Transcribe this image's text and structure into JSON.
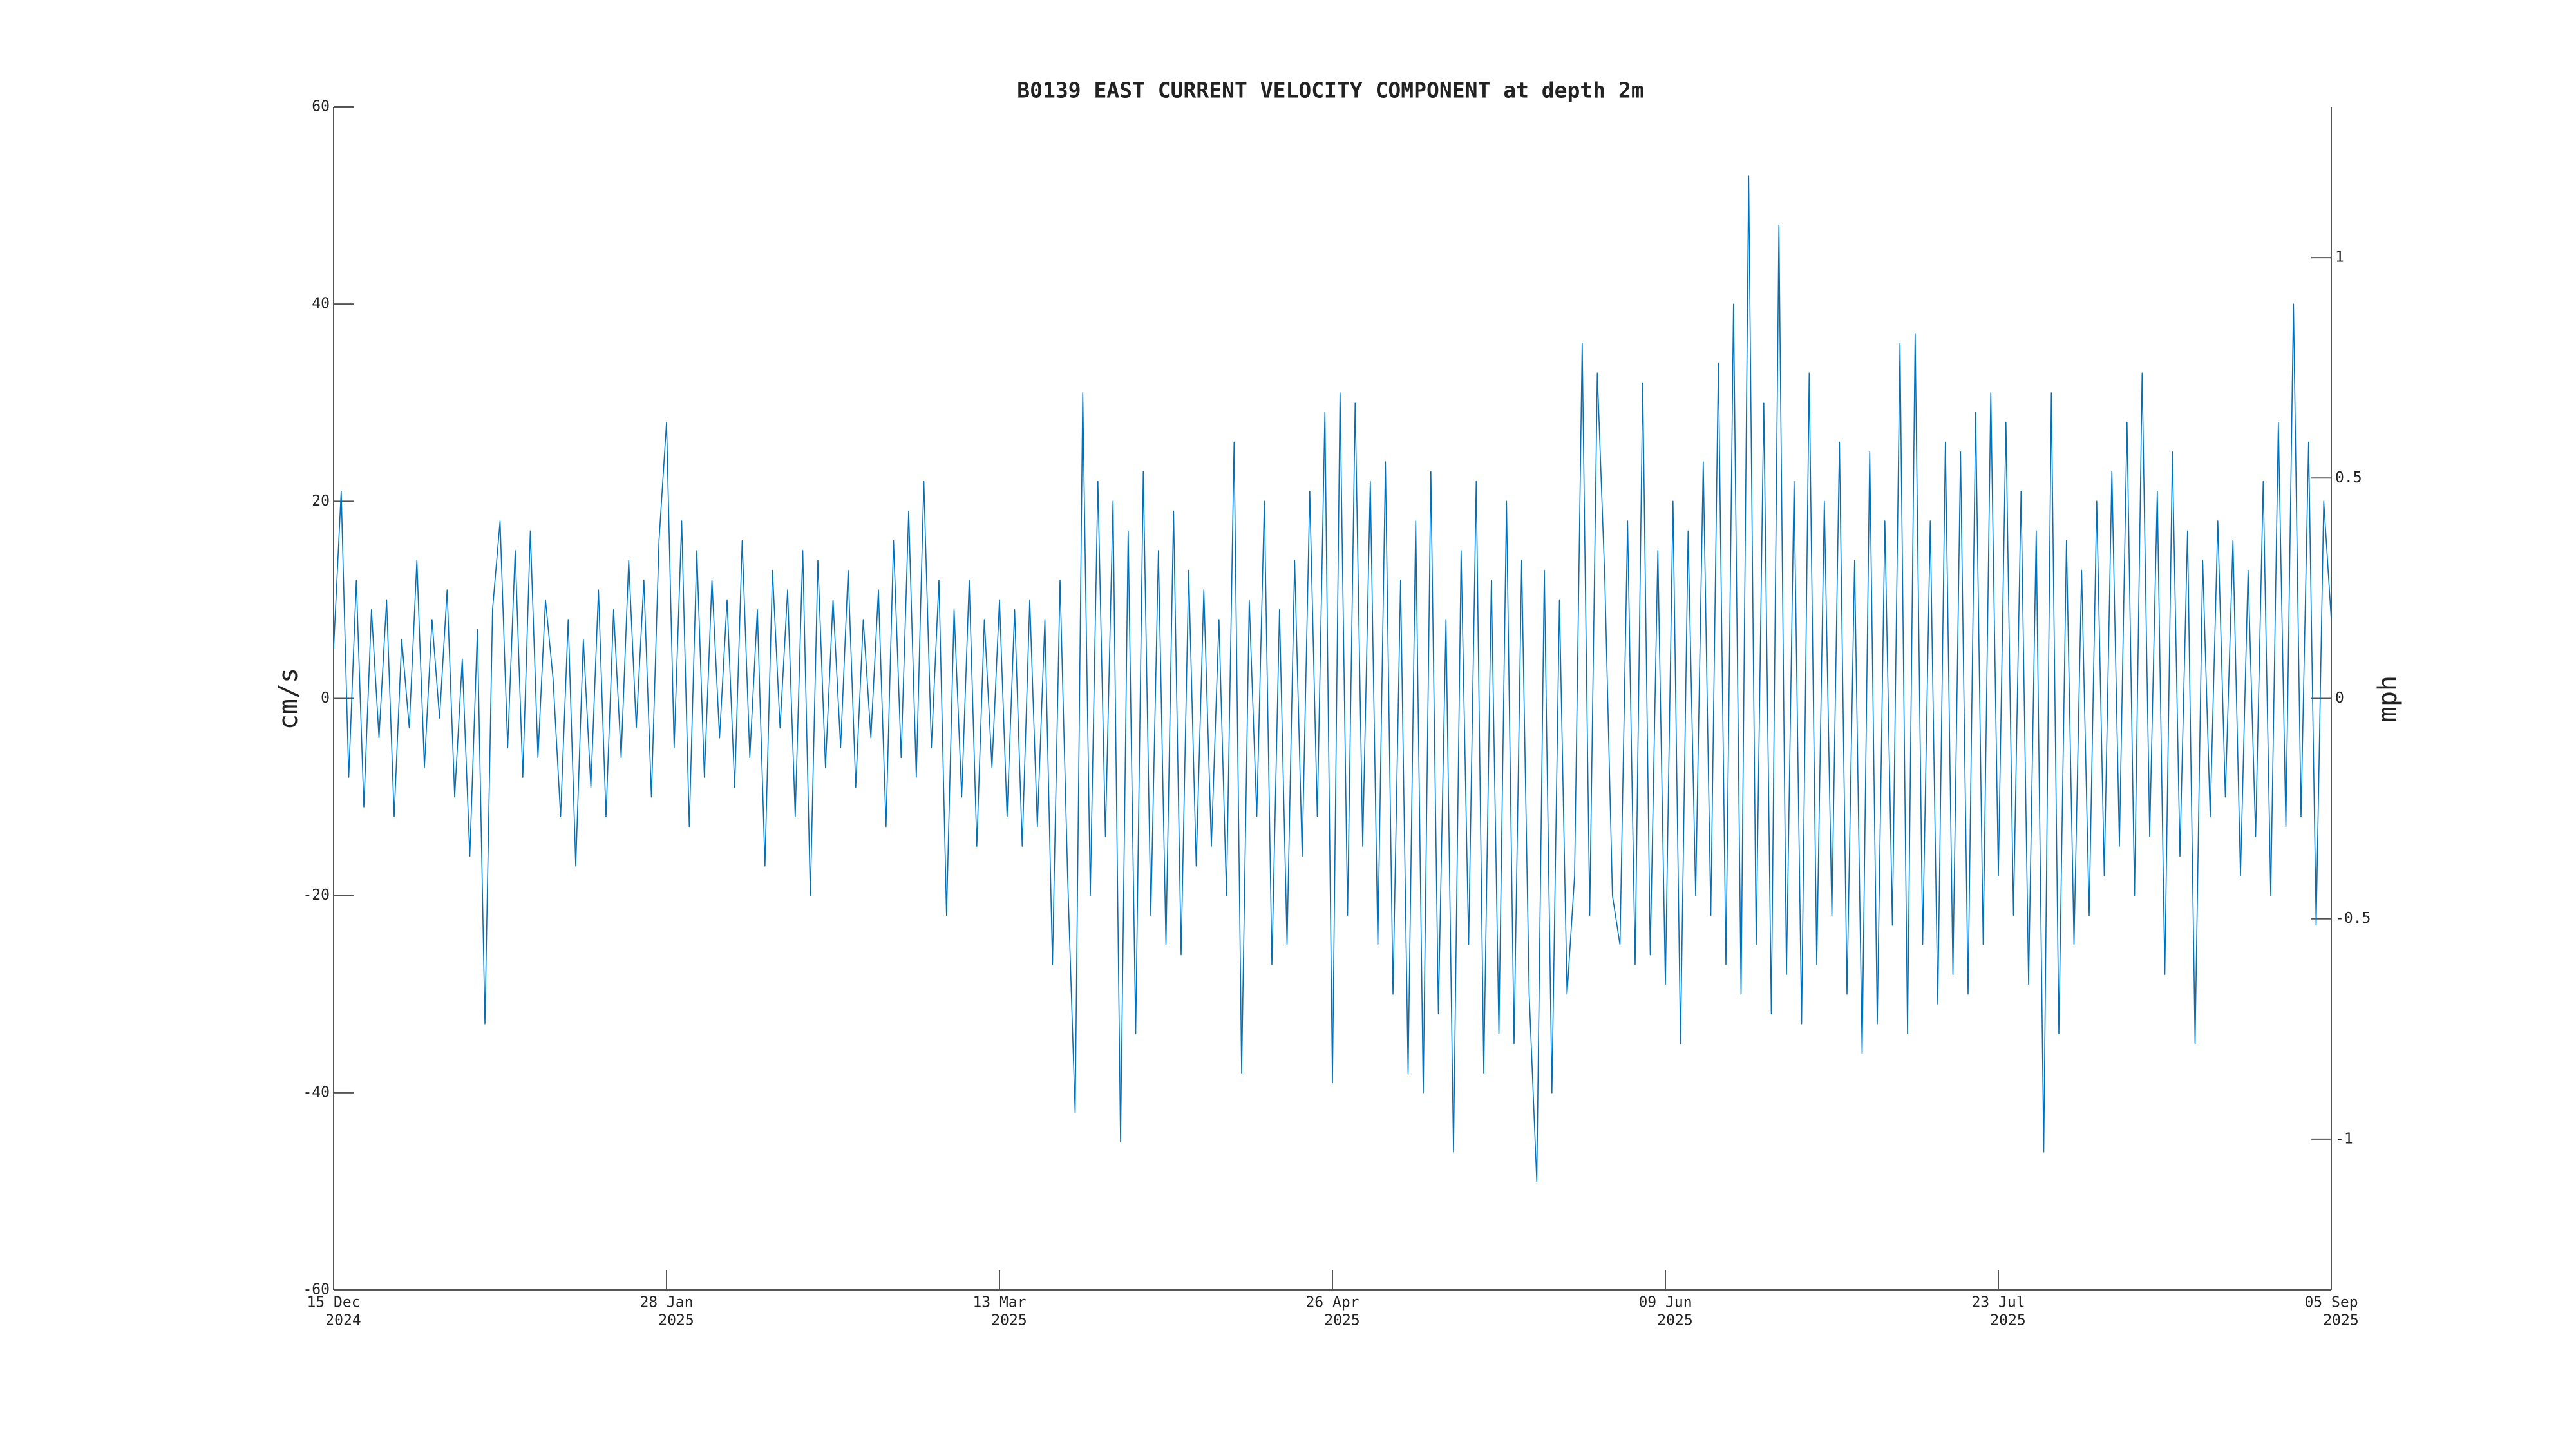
{
  "chart_data": {
    "type": "line",
    "title": "B0139 EAST CURRENT VELOCITY COMPONENT at depth 2m",
    "ylabel": "cm/s",
    "y2label": "mph",
    "xlim": [
      "2024-12-15",
      "2025-09-05"
    ],
    "xticks": [
      {
        "value": "2024-12-15",
        "label": "15 Dec",
        "year": "2024"
      },
      {
        "value": "2025-01-28",
        "label": "28 Jan",
        "year": "2025"
      },
      {
        "value": "2025-03-13",
        "label": "13 Mar",
        "year": "2025"
      },
      {
        "value": "2025-04-26",
        "label": "26 Apr",
        "year": "2025"
      },
      {
        "value": "2025-06-09",
        "label": "09 Jun",
        "year": "2025"
      },
      {
        "value": "2025-07-23",
        "label": "23 Jul",
        "year": "2025"
      },
      {
        "value": "2025-09-05",
        "label": "05 Sep",
        "year": "2025"
      }
    ],
    "ylim": [
      -60,
      60
    ],
    "yticks": [
      -60,
      -40,
      -20,
      0,
      20,
      40,
      60
    ],
    "y2lim": [
      -1.342,
      1.342
    ],
    "y2ticks": [
      -1,
      -0.5,
      0,
      0.5,
      1
    ],
    "grid": false,
    "x": [
      "2024-12-15",
      "2024-12-16",
      "2024-12-17",
      "2024-12-18",
      "2024-12-19",
      "2024-12-20",
      "2024-12-21",
      "2024-12-22",
      "2024-12-23",
      "2024-12-24",
      "2024-12-25",
      "2024-12-26",
      "2024-12-27",
      "2024-12-28",
      "2024-12-29",
      "2024-12-30",
      "2024-12-31",
      "2025-01-01",
      "2025-01-02",
      "2025-01-03",
      "2025-01-04",
      "2025-01-05",
      "2025-01-06",
      "2025-01-07",
      "2025-01-08",
      "2025-01-09",
      "2025-01-10",
      "2025-01-11",
      "2025-01-12",
      "2025-01-13",
      "2025-01-14",
      "2025-01-15",
      "2025-01-16",
      "2025-01-17",
      "2025-01-18",
      "2025-01-19",
      "2025-01-20",
      "2025-01-21",
      "2025-01-22",
      "2025-01-23",
      "2025-01-24",
      "2025-01-25",
      "2025-01-26",
      "2025-01-27",
      "2025-01-28",
      "2025-01-29",
      "2025-01-30",
      "2025-01-31",
      "2025-02-01",
      "2025-02-02",
      "2025-02-03",
      "2025-02-04",
      "2025-02-05",
      "2025-02-06",
      "2025-02-07",
      "2025-02-08",
      "2025-02-09",
      "2025-02-10",
      "2025-02-11",
      "2025-02-12",
      "2025-02-13",
      "2025-02-14",
      "2025-02-15",
      "2025-02-16",
      "2025-02-17",
      "2025-02-18",
      "2025-02-19",
      "2025-02-20",
      "2025-02-21",
      "2025-02-22",
      "2025-02-23",
      "2025-02-24",
      "2025-02-25",
      "2025-02-26",
      "2025-02-27",
      "2025-02-28",
      "2025-03-01",
      "2025-03-02",
      "2025-03-03",
      "2025-03-04",
      "2025-03-05",
      "2025-03-06",
      "2025-03-07",
      "2025-03-08",
      "2025-03-09",
      "2025-03-10",
      "2025-03-11",
      "2025-03-12",
      "2025-03-13",
      "2025-03-14",
      "2025-03-15",
      "2025-03-16",
      "2025-03-17",
      "2025-03-18",
      "2025-03-19",
      "2025-03-20",
      "2025-03-21",
      "2025-03-22",
      "2025-03-23",
      "2025-03-24",
      "2025-03-25",
      "2025-03-26",
      "2025-03-27",
      "2025-03-28",
      "2025-03-29",
      "2025-03-30",
      "2025-03-31",
      "2025-04-01",
      "2025-04-02",
      "2025-04-03",
      "2025-04-04",
      "2025-04-05",
      "2025-04-06",
      "2025-04-07",
      "2025-04-08",
      "2025-04-09",
      "2025-04-10",
      "2025-04-11",
      "2025-04-12",
      "2025-04-13",
      "2025-04-14",
      "2025-04-15",
      "2025-04-16",
      "2025-04-17",
      "2025-04-18",
      "2025-04-19",
      "2025-04-20",
      "2025-04-21",
      "2025-04-22",
      "2025-04-23",
      "2025-04-24",
      "2025-04-25",
      "2025-04-26",
      "2025-04-27",
      "2025-04-28",
      "2025-04-29",
      "2025-04-30",
      "2025-05-01",
      "2025-05-02",
      "2025-05-03",
      "2025-05-04",
      "2025-05-05",
      "2025-05-06",
      "2025-05-07",
      "2025-05-08",
      "2025-05-09",
      "2025-05-10",
      "2025-05-11",
      "2025-05-12",
      "2025-05-13",
      "2025-05-14",
      "2025-05-15",
      "2025-05-16",
      "2025-05-17",
      "2025-05-18",
      "2025-05-19",
      "2025-05-20",
      "2025-05-21",
      "2025-05-22",
      "2025-05-23",
      "2025-05-24",
      "2025-05-25",
      "2025-05-26",
      "2025-05-27",
      "2025-05-28",
      "2025-05-29",
      "2025-05-30",
      "2025-05-31",
      "2025-06-01",
      "2025-06-02",
      "2025-06-03",
      "2025-06-04",
      "2025-06-05",
      "2025-06-06",
      "2025-06-07",
      "2025-06-08",
      "2025-06-09",
      "2025-06-10",
      "2025-06-11",
      "2025-06-12",
      "2025-06-13",
      "2025-06-14",
      "2025-06-15",
      "2025-06-16",
      "2025-06-17",
      "2025-06-18",
      "2025-06-19",
      "2025-06-20",
      "2025-06-21",
      "2025-06-22",
      "2025-06-23",
      "2025-06-24",
      "2025-06-25",
      "2025-06-26",
      "2025-06-27",
      "2025-06-28",
      "2025-06-29",
      "2025-06-30",
      "2025-07-01",
      "2025-07-02",
      "2025-07-03",
      "2025-07-04",
      "2025-07-05",
      "2025-07-06",
      "2025-07-07",
      "2025-07-08",
      "2025-07-09",
      "2025-07-10",
      "2025-07-11",
      "2025-07-12",
      "2025-07-13",
      "2025-07-14",
      "2025-07-15",
      "2025-07-16",
      "2025-07-17",
      "2025-07-18",
      "2025-07-19",
      "2025-07-20",
      "2025-07-21",
      "2025-07-22",
      "2025-07-23",
      "2025-07-24",
      "2025-07-25",
      "2025-07-26",
      "2025-07-27",
      "2025-07-28",
      "2025-07-29",
      "2025-07-30",
      "2025-07-31",
      "2025-08-01",
      "2025-08-02",
      "2025-08-03",
      "2025-08-04",
      "2025-08-05",
      "2025-08-06",
      "2025-08-07",
      "2025-08-08",
      "2025-08-09",
      "2025-08-10",
      "2025-08-11",
      "2025-08-12",
      "2025-08-13",
      "2025-08-14",
      "2025-08-15",
      "2025-08-16",
      "2025-08-17",
      "2025-08-18",
      "2025-08-19",
      "2025-08-20",
      "2025-08-21",
      "2025-08-22",
      "2025-08-23",
      "2025-08-24",
      "2025-08-25",
      "2025-08-26",
      "2025-08-27",
      "2025-08-28",
      "2025-08-29",
      "2025-08-30",
      "2025-08-31",
      "2025-09-01",
      "2025-09-02",
      "2025-09-03",
      "2025-09-04",
      "2025-09-05"
    ],
    "series": [
      {
        "color": "#0072bd",
        "values": [
          5,
          21,
          -8,
          12,
          -11,
          9,
          -4,
          10,
          -12,
          6,
          -3,
          14,
          -7,
          8,
          -2,
          11,
          -10,
          4,
          -16,
          7,
          -33,
          9,
          18,
          -5,
          15,
          -8,
          17,
          -6,
          10,
          2,
          -12,
          8,
          -17,
          6,
          -9,
          11,
          -12,
          9,
          -6,
          14,
          -3,
          12,
          -10,
          16,
          28,
          -5,
          18,
          -13,
          15,
          -8,
          12,
          -4,
          10,
          -9,
          16,
          -6,
          9,
          -17,
          13,
          -3,
          11,
          -12,
          15,
          -20,
          14,
          -7,
          10,
          -5,
          13,
          -9,
          8,
          -4,
          11,
          -13,
          16,
          -6,
          19,
          -8,
          22,
          -5,
          12,
          -22,
          9,
          -10,
          12,
          -15,
          8,
          -7,
          10,
          -12,
          9,
          -15,
          10,
          -13,
          8,
          -27,
          12,
          -18,
          -42,
          31,
          -20,
          22,
          -14,
          20,
          -45,
          17,
          -34,
          23,
          -22,
          15,
          -25,
          19,
          -26,
          13,
          -17,
          11,
          -15,
          8,
          -20,
          26,
          -38,
          10,
          -12,
          20,
          -27,
          9,
          -25,
          14,
          -16,
          21,
          -12,
          29,
          -39,
          31,
          -22,
          30,
          -15,
          22,
          -25,
          24,
          -30,
          12,
          -38,
          18,
          -40,
          23,
          -32,
          8,
          -46,
          15,
          -25,
          22,
          -38,
          12,
          -34,
          20,
          -35,
          14,
          -30,
          -49,
          13,
          -40,
          10,
          -30,
          -18,
          36,
          -22,
          33,
          12,
          -20,
          -25,
          18,
          -27,
          32,
          -26,
          15,
          -29,
          20,
          -35,
          17,
          -20,
          24,
          -22,
          34,
          -27,
          40,
          -30,
          53,
          -25,
          30,
          -32,
          48,
          -28,
          22,
          -33,
          33,
          -27,
          20,
          -22,
          26,
          -30,
          14,
          -36,
          25,
          -33,
          18,
          -23,
          36,
          -34,
          37,
          -25,
          18,
          -31,
          26,
          -28,
          25,
          -30,
          29,
          -25,
          31,
          -18,
          28,
          -22,
          21,
          -29,
          17,
          -46,
          31,
          -34,
          16,
          -25,
          13,
          -22,
          20,
          -18,
          23,
          -15,
          28,
          -20,
          33,
          -14,
          21,
          -28,
          25,
          -16,
          17,
          -35,
          14,
          -12,
          18,
          -10,
          16,
          -18,
          13,
          -14,
          22,
          -20,
          28,
          -13,
          40,
          -12,
          26,
          -23,
          20,
          8
        ]
      }
    ]
  }
}
